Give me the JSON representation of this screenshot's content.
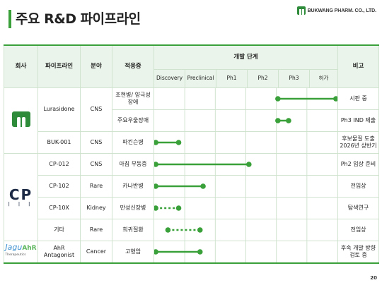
{
  "title": "주요 R&D 파이프라인",
  "logo": {
    "text": "BUKWANG PHARM. CO., LTD.",
    "icon": "bukwang-mark-icon"
  },
  "page_number": "20",
  "colors": {
    "accent": "#3aa13a",
    "header_bg": "#eaf4ea",
    "border": "#cfe3cf"
  },
  "headers": {
    "company": "회사",
    "pipeline": "파이프라인",
    "area": "분야",
    "indication": "적응증",
    "dev_stage": "개발 단계",
    "note": "비고",
    "stages": [
      "Discovery",
      "Preclinical",
      "Ph1",
      "Ph2",
      "Ph3",
      "허가"
    ]
  },
  "companies": [
    {
      "name": "bukwang",
      "logo_type": "bukwang"
    },
    {
      "name": "cp",
      "logo_type": "cp",
      "logo_text": "CP",
      "logo_sub": "| | |"
    },
    {
      "name": "jaguahr",
      "logo_type": "jagu",
      "logo_text_a": "Jagu",
      "logo_text_b": "AhR",
      "logo_sub": "Therapeutics"
    }
  ],
  "rows": [
    {
      "pipeline": "Lurasidone",
      "area": "CNS",
      "indication": "조현병/ 양극성 장애",
      "note": "시판 중",
      "bar": {
        "start": 4.05,
        "end": 5.95,
        "style": "solid"
      }
    },
    {
      "pipeline": "",
      "area": "",
      "indication": "주요우울장애",
      "note": "Ph3 IND 제출",
      "bar": {
        "start": 4.05,
        "end": 4.4,
        "style": "solid"
      }
    },
    {
      "pipeline": "BUK-001",
      "area": "CNS",
      "indication": "파킨슨병",
      "note": "후보물질 도출 2026년 상반기",
      "bar": {
        "start": 0.05,
        "end": 0.8,
        "style": "solid"
      }
    },
    {
      "pipeline": "CP-012",
      "area": "CNS",
      "indication": "아침 무동증",
      "note": "Ph2 임상 준비",
      "bar": {
        "start": 0.05,
        "end": 3.1,
        "style": "solid"
      }
    },
    {
      "pipeline": "CP-102",
      "area": "Rare",
      "indication": "카나반병",
      "note": "전임상",
      "bar": {
        "start": 0.05,
        "end": 1.6,
        "style": "solid"
      }
    },
    {
      "pipeline": "CP-10X",
      "area": "Kidney",
      "indication": "만성신장병",
      "note": "탐색연구",
      "bar": {
        "start": 0.05,
        "end": 0.8,
        "style": "dashed"
      }
    },
    {
      "pipeline": "기타",
      "area": "Rare",
      "indication": "희귀질환",
      "note": "전임상",
      "bar": {
        "start": 0.45,
        "end": 1.5,
        "style": "dashed"
      }
    },
    {
      "pipeline": "AhR Antagonist",
      "area": "Cancer",
      "indication": "고형암",
      "note": "후속 개발 방향 검토 중",
      "bar": {
        "start": 0.05,
        "end": 1.5,
        "style": "solid"
      }
    }
  ]
}
